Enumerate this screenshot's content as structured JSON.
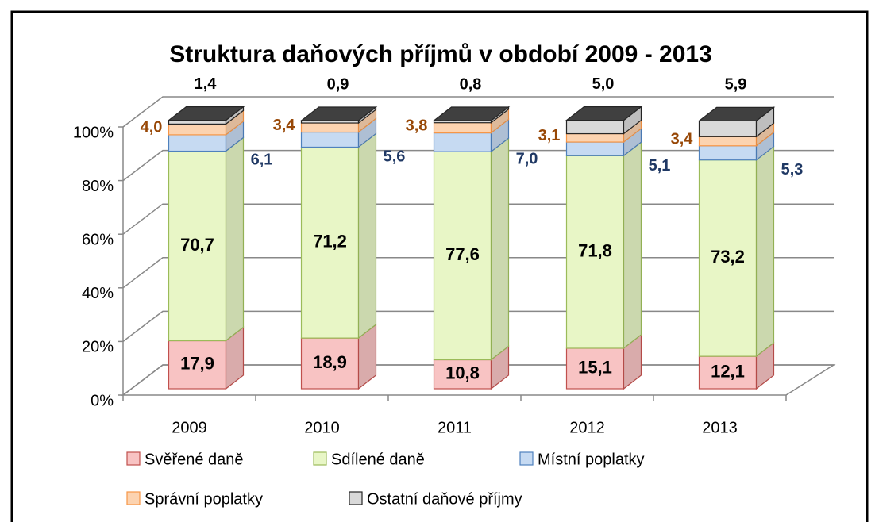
{
  "chart_data": {
    "type": "bar3d_stacked",
    "title": "Struktura daňových příjmů v období 2009 - 2013",
    "categories": [
      "2009",
      "2010",
      "2011",
      "2012",
      "2013"
    ],
    "series": [
      {
        "name": "Svěřené daně",
        "color": "#f8c3c3",
        "edge": "#c0504d",
        "label_color": "#000000",
        "values": [
          17.9,
          18.9,
          10.8,
          15.1,
          12.1
        ],
        "value_labels": [
          "17,9",
          "18,9",
          "10,8",
          "15,1",
          "12,1"
        ]
      },
      {
        "name": "Sdílené daně",
        "color": "#e8f6c6",
        "edge": "#9bbb59",
        "label_color": "#000000",
        "values": [
          70.7,
          71.2,
          77.6,
          71.8,
          73.2
        ],
        "value_labels": [
          "70,7",
          "71,2",
          "77,6",
          "71,8",
          "73,2"
        ]
      },
      {
        "name": "Místní poplatky",
        "color": "#c6daf2",
        "edge": "#4f81bd",
        "label_color": "#1f3864",
        "values": [
          6.1,
          5.6,
          7.0,
          5.1,
          5.3
        ],
        "value_labels": [
          "6,1",
          "5,6",
          "7,0",
          "5,1",
          "5,3"
        ]
      },
      {
        "name": "Správní poplatky",
        "color": "#fcd3b0",
        "edge": "#f79646",
        "label_color": "#984807",
        "values": [
          4.0,
          3.4,
          3.8,
          3.1,
          3.4
        ],
        "value_labels": [
          "4,0",
          "3,4",
          "3,8",
          "3,1",
          "3,4"
        ]
      },
      {
        "name": "Ostatní daňové příjmy",
        "color": "#d9d9d9",
        "edge": "#262626",
        "label_color": "#000000",
        "values": [
          1.4,
          0.9,
          0.8,
          5.0,
          5.9
        ],
        "value_labels": [
          "1,4",
          "0,9",
          "0,8",
          "5,0",
          "5,9"
        ]
      }
    ],
    "ylim": [
      0,
      100
    ],
    "yticks": [
      {
        "value": 0,
        "label": "0%"
      },
      {
        "value": 20,
        "label": "20%"
      },
      {
        "value": 40,
        "label": "40%"
      },
      {
        "value": 60,
        "label": "60%"
      },
      {
        "value": 80,
        "label": "80%"
      },
      {
        "value": 100,
        "label": "100%"
      }
    ],
    "grid": true,
    "legend": "bottom"
  }
}
